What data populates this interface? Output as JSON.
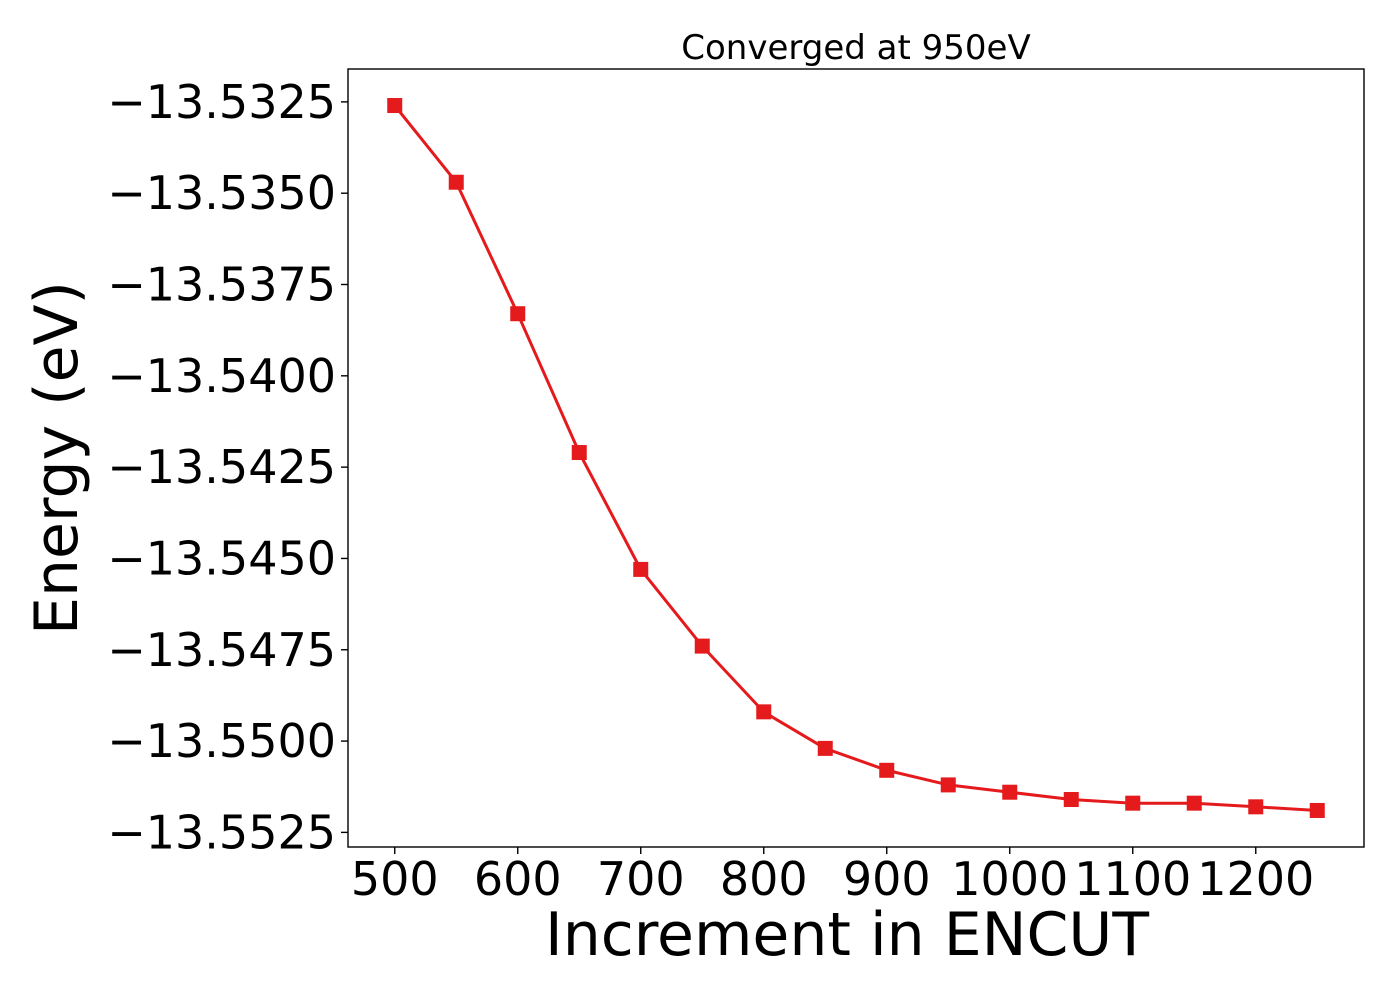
{
  "chart_data": {
    "type": "line",
    "title": "Converged at 950eV",
    "xlabel": "Increment in ENCUT",
    "ylabel": "Energy (eV)",
    "x": [
      500,
      550,
      600,
      650,
      700,
      750,
      800,
      850,
      900,
      950,
      1000,
      1050,
      1100,
      1150,
      1200,
      1250
    ],
    "series": [
      {
        "values": [
          -13.5326,
          -13.5347,
          -13.5383,
          -13.5421,
          -13.5453,
          -13.5474,
          -13.5492,
          -13.5502,
          -13.5508,
          -13.5512,
          -13.5514,
          -13.5516,
          -13.5517,
          -13.5517,
          -13.5518,
          -13.5519
        ],
        "color": "#e41a1c",
        "marker": "square"
      }
    ],
    "xlim": [
      462,
      1288
    ],
    "ylim": [
      -13.5529,
      -13.5316
    ],
    "xticks": [
      500,
      600,
      700,
      800,
      900,
      1000,
      1100,
      1200
    ],
    "xtick_labels": [
      "500",
      "600",
      "700",
      "800",
      "900",
      "1000",
      "1100",
      "1200"
    ],
    "yticks": [
      -13.5325,
      -13.535,
      -13.5375,
      -13.54,
      -13.5425,
      -13.545,
      -13.5475,
      -13.55,
      -13.5525
    ],
    "ytick_labels": [
      "−13.5325",
      "−13.5350",
      "−13.5375",
      "−13.5400",
      "−13.5425",
      "−13.5450",
      "−13.5475",
      "−13.5500",
      "−13.5525"
    ],
    "grid": false,
    "legend": false
  }
}
